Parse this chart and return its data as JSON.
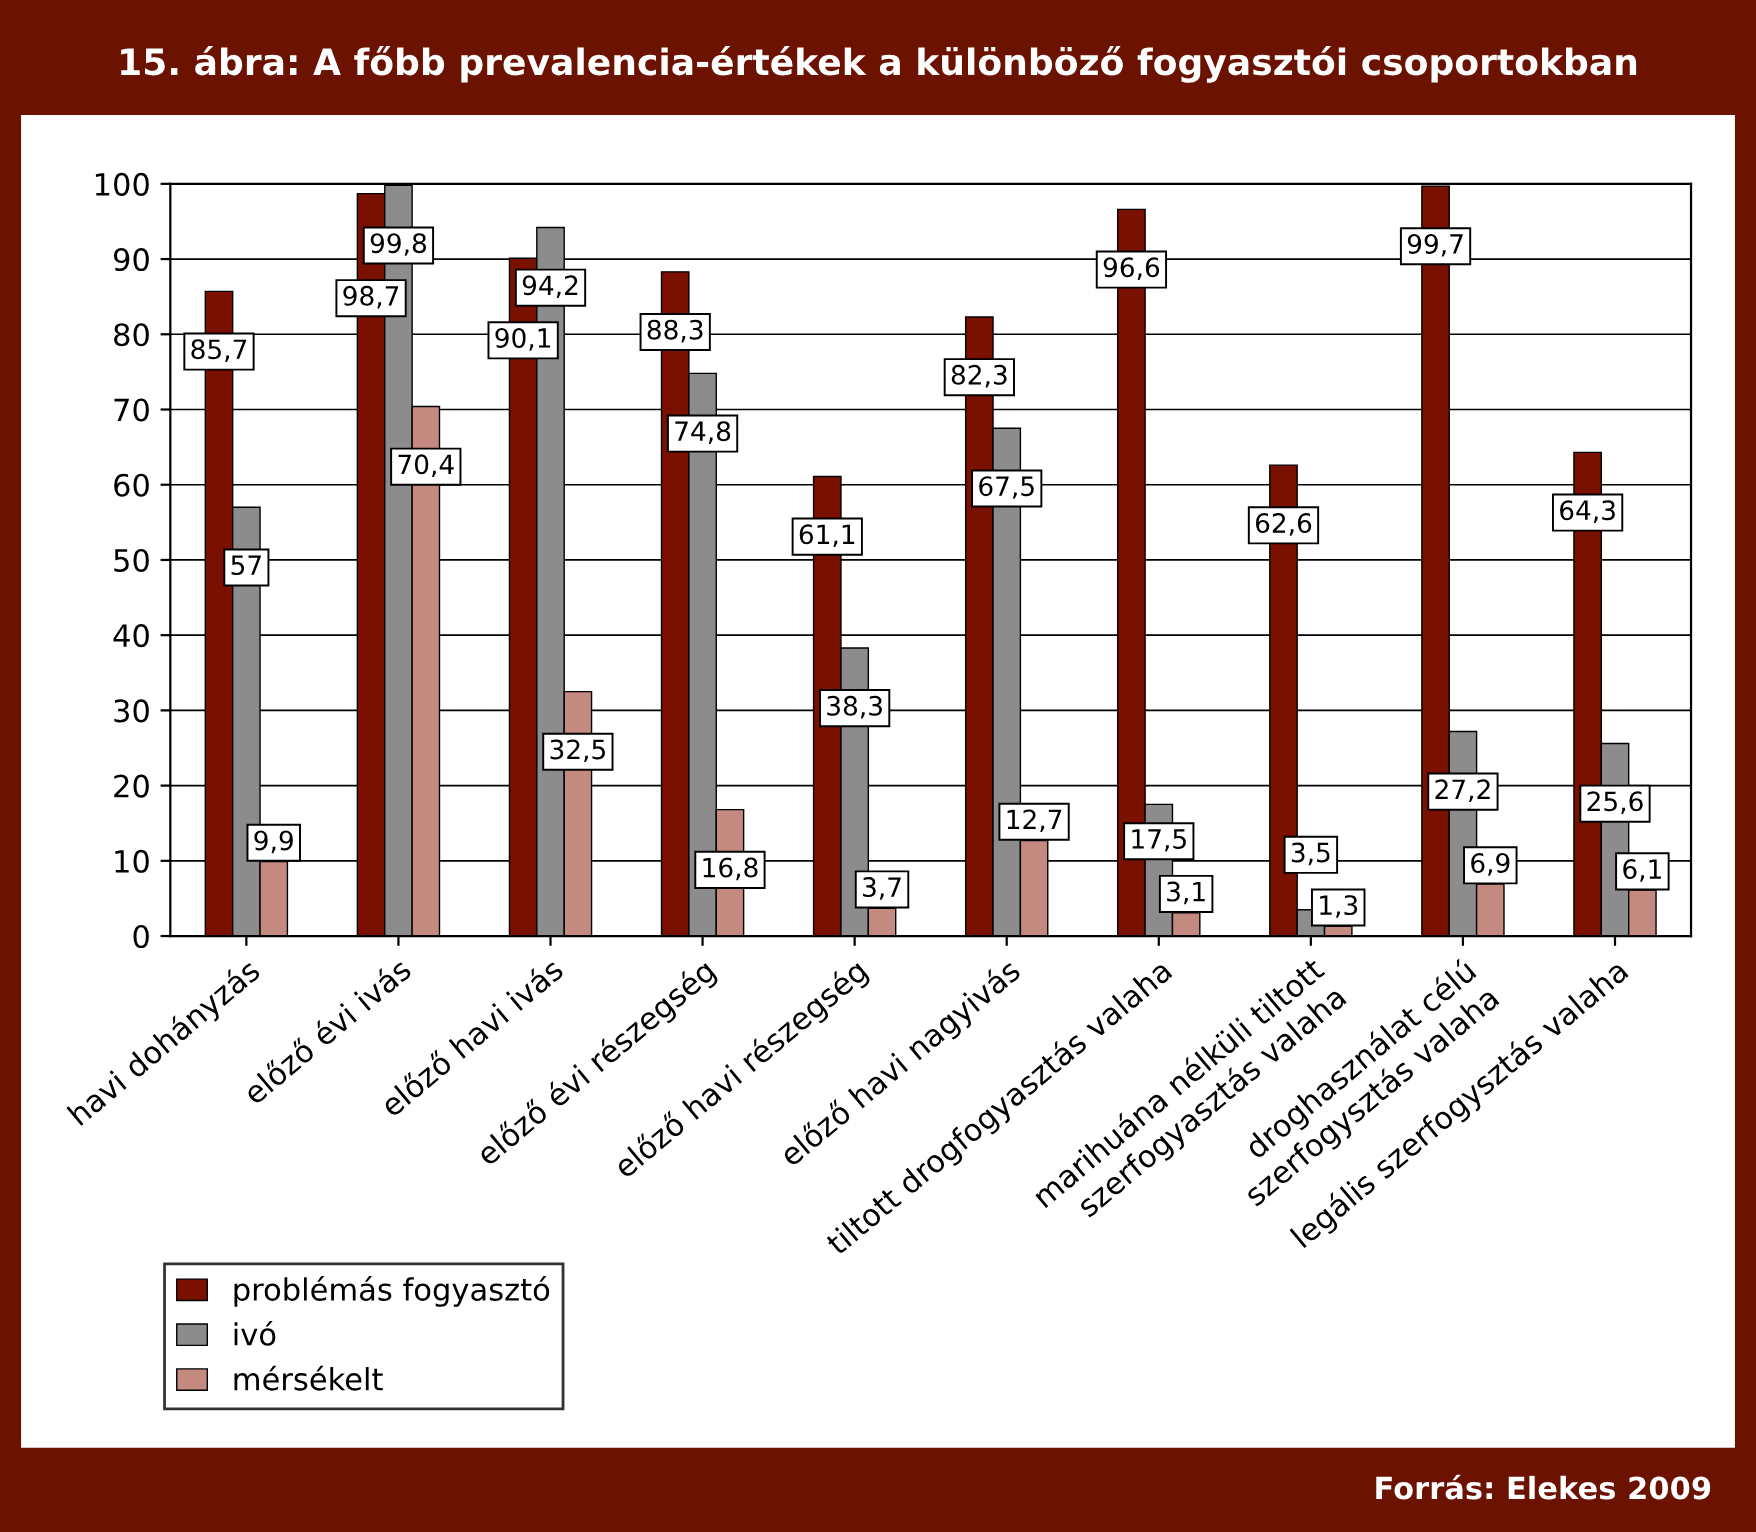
{
  "chart_data": {
    "type": "bar",
    "title": "15. ábra: A főbb prevalencia-értékek a különböző fogyasztói csoportokban",
    "categories": [
      "havi dohányzás",
      "előző évi ivás",
      "előző havi ivás",
      "előző évi részegség",
      "előző havi részegség",
      "előző havi nagyivás",
      "tiltott drogfogyasztás valaha",
      "marihuána nélküli tiltott\nszerfogyasztás valaha",
      "droghasználat célú\nszerfogysztás valaha",
      "legális szerfogysztás valaha"
    ],
    "series": [
      {
        "name": "problémás fogyasztó",
        "color": "#7a1000",
        "values": [
          85.7,
          98.7,
          90.1,
          88.3,
          61.1,
          82.3,
          96.6,
          62.6,
          99.7,
          64.3
        ],
        "value_labels": [
          "85,7",
          "98,7",
          "90,1",
          "88,3",
          "61,1",
          "82,3",
          "96,6",
          "62,6",
          "99,7",
          "64,3"
        ]
      },
      {
        "name": "ivó",
        "color": "#8c8c8c",
        "values": [
          57,
          99.8,
          94.2,
          74.8,
          38.3,
          67.5,
          17.5,
          3.5,
          27.2,
          25.6
        ],
        "value_labels": [
          "57",
          "99,8",
          "94,2",
          "74,8",
          "38,3",
          "67,5",
          "17,5",
          "3,5",
          "27,2",
          "25,6"
        ]
      },
      {
        "name": "mérsékelt",
        "color": "#c48a80",
        "values": [
          9.9,
          70.4,
          32.5,
          16.8,
          3.7,
          12.7,
          3.1,
          1.3,
          6.9,
          6.1
        ],
        "value_labels": [
          "9,9",
          "70,4",
          "32,5",
          "16,8",
          "3,7",
          "12,7",
          "3,1",
          "1,3",
          "6,9",
          "6,1"
        ]
      }
    ],
    "ylim": [
      0,
      100
    ],
    "yticks": [
      0,
      10,
      20,
      30,
      40,
      50,
      60,
      70,
      80,
      90,
      100
    ],
    "grid": "y",
    "legend": "bottom left",
    "annotations": [
      "Forrás: Elekes 2009"
    ]
  }
}
